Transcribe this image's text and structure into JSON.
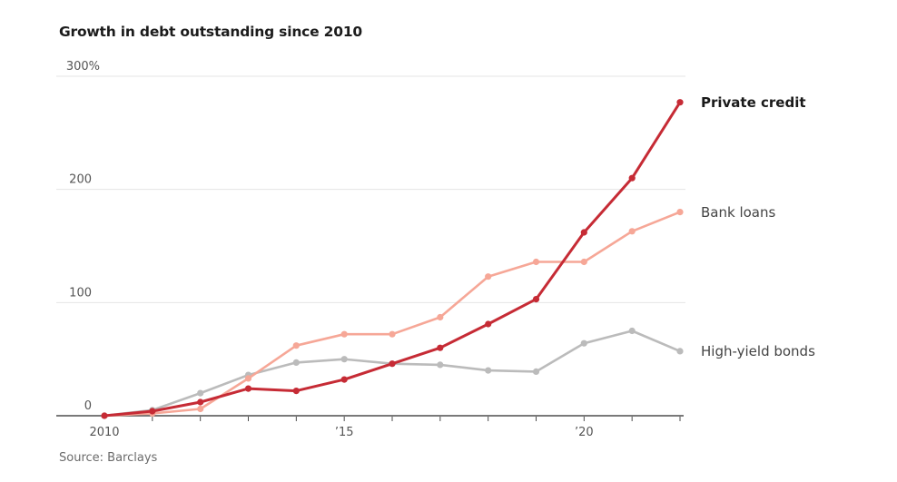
{
  "title": "Growth in debt outstanding since 2010",
  "source": "Source: Barclays",
  "chart_data": {
    "type": "line",
    "title": "Growth in debt outstanding since 2010",
    "xlabel": "",
    "ylabel": "",
    "ylim": [
      0,
      300
    ],
    "grid": "horizontal",
    "legend_position": "right-end-of-line",
    "x": [
      2010,
      2011,
      2012,
      2013,
      2014,
      2015,
      2016,
      2017,
      2018,
      2019,
      2020,
      2021,
      2022
    ],
    "series": [
      {
        "name": "Private credit",
        "color": "#c62b35",
        "label_color": "#1a1a1a",
        "label_bold": true,
        "values": [
          0,
          4,
          12,
          24,
          22,
          32,
          46,
          60,
          81,
          103,
          162,
          210,
          277
        ]
      },
      {
        "name": "Bank loans",
        "color": "#f6a797",
        "label_color": "#444444",
        "label_bold": false,
        "values": [
          0,
          2,
          6,
          33,
          62,
          72,
          72,
          87,
          123,
          136,
          136,
          163,
          180
        ]
      },
      {
        "name": "High-yield bonds",
        "color": "#bbbbbb",
        "label_color": "#444444",
        "label_bold": false,
        "values": [
          0,
          5,
          20,
          36,
          47,
          50,
          46,
          45,
          40,
          39,
          64,
          75,
          57
        ]
      }
    ],
    "yticks": [
      {
        "value": 0,
        "label": "0"
      },
      {
        "value": 100,
        "label": "100"
      },
      {
        "value": 200,
        "label": "200"
      },
      {
        "value": 300,
        "label": "300%"
      }
    ],
    "xtick_labels": [
      {
        "year": 2010,
        "label": "2010"
      },
      {
        "year": 2015,
        "label": "’15"
      },
      {
        "year": 2020,
        "label": "’20"
      }
    ],
    "axis_color": "#4d4d4d",
    "gridline_color": "#e4e4e4",
    "tick_label_color": "#555555"
  }
}
